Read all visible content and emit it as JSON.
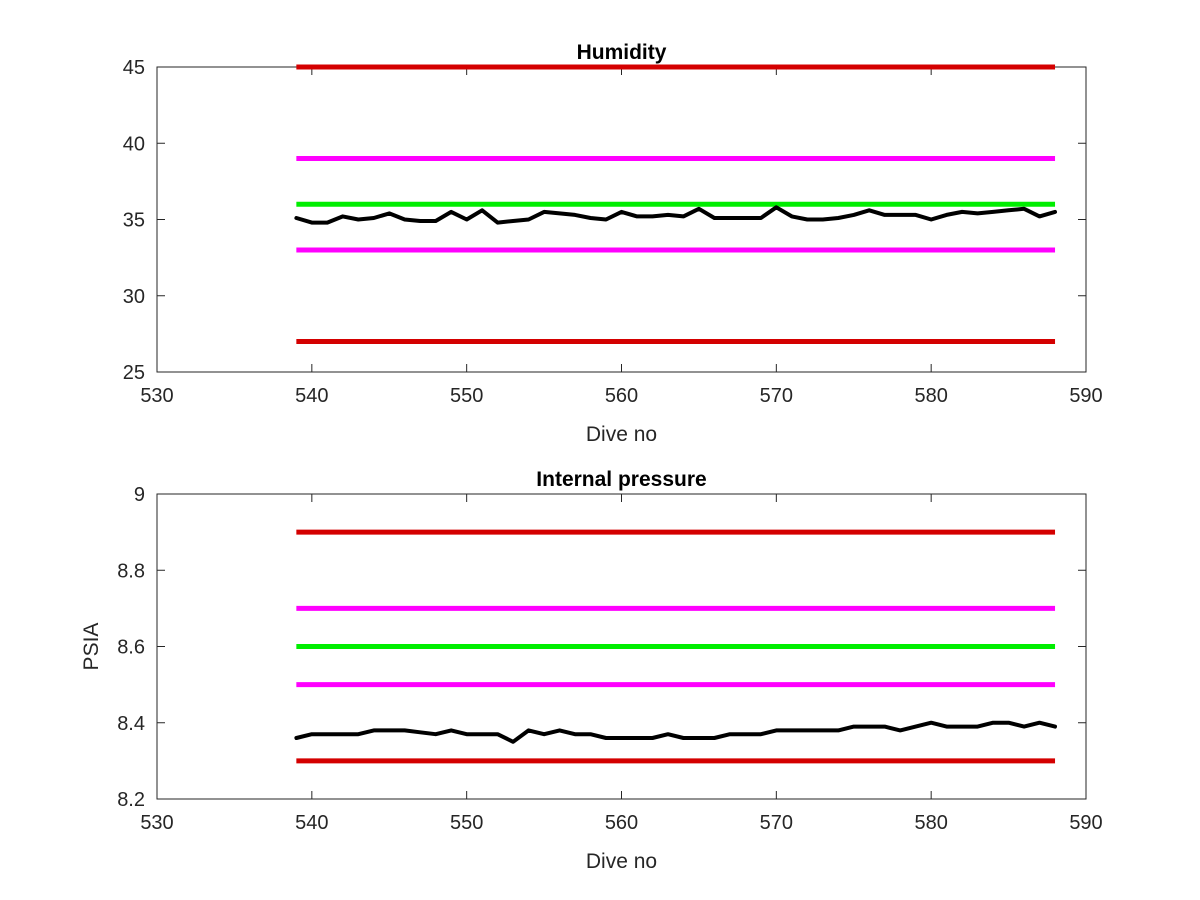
{
  "chart_data": [
    {
      "type": "line",
      "title": "Humidity",
      "xlabel": "Dive no",
      "ylabel": "",
      "xlim": [
        530,
        590
      ],
      "ylim": [
        25,
        45
      ],
      "xticks": [
        "530",
        "540",
        "550",
        "560",
        "570",
        "580",
        "590"
      ],
      "yticks": [
        "25",
        "30",
        "35",
        "40",
        "45"
      ],
      "grid": false,
      "limit_lines": [
        {
          "color": "#d40000",
          "y": 45,
          "x": [
            539,
            588
          ]
        },
        {
          "color": "#ff00ff",
          "y": 39,
          "x": [
            539,
            588
          ]
        },
        {
          "color": "#00ee00",
          "y": 36,
          "x": [
            539,
            588
          ]
        },
        {
          "color": "#ff00ff",
          "y": 33,
          "x": [
            539,
            588
          ]
        },
        {
          "color": "#d40000",
          "y": 27,
          "x": [
            539,
            588
          ]
        }
      ],
      "series": [
        {
          "color": "#000000",
          "x": [
            539,
            540,
            541,
            542,
            543,
            544,
            545,
            546,
            547,
            548,
            549,
            550,
            551,
            552,
            553,
            554,
            555,
            556,
            557,
            558,
            559,
            560,
            561,
            562,
            563,
            564,
            565,
            566,
            567,
            568,
            569,
            570,
            571,
            572,
            573,
            574,
            575,
            576,
            577,
            578,
            579,
            580,
            581,
            582,
            583,
            584,
            585,
            586,
            587,
            588
          ],
          "values": [
            35.1,
            34.8,
            34.8,
            35.2,
            35.0,
            35.1,
            35.4,
            35.0,
            34.9,
            34.9,
            35.5,
            35.0,
            35.6,
            34.8,
            34.9,
            35.0,
            35.5,
            35.4,
            35.3,
            35.1,
            35.0,
            35.5,
            35.2,
            35.2,
            35.3,
            35.2,
            35.7,
            35.1,
            35.1,
            35.1,
            35.1,
            35.8,
            35.2,
            35.0,
            35.0,
            35.1,
            35.3,
            35.6,
            35.3,
            35.3,
            35.3,
            35.0,
            35.3,
            35.5,
            35.4,
            35.5,
            35.6,
            35.7,
            35.2,
            35.5
          ]
        }
      ]
    },
    {
      "type": "line",
      "title": "Internal pressure",
      "xlabel": "Dive no",
      "ylabel": "PSIA",
      "xlim": [
        530,
        590
      ],
      "ylim": [
        8.2,
        9.0
      ],
      "xticks": [
        "530",
        "540",
        "550",
        "560",
        "570",
        "580",
        "590"
      ],
      "yticks": [
        "8.2",
        "8.4",
        "8.6",
        "8.8",
        "9"
      ],
      "grid": false,
      "limit_lines": [
        {
          "color": "#d40000",
          "y": 8.9,
          "x": [
            539,
            588
          ]
        },
        {
          "color": "#ff00ff",
          "y": 8.7,
          "x": [
            539,
            588
          ]
        },
        {
          "color": "#00ee00",
          "y": 8.6,
          "x": [
            539,
            588
          ]
        },
        {
          "color": "#ff00ff",
          "y": 8.5,
          "x": [
            539,
            588
          ]
        },
        {
          "color": "#d40000",
          "y": 8.3,
          "x": [
            539,
            588
          ]
        }
      ],
      "series": [
        {
          "color": "#000000",
          "x": [
            539,
            540,
            541,
            542,
            543,
            544,
            545,
            546,
            547,
            548,
            549,
            550,
            551,
            552,
            553,
            554,
            555,
            556,
            557,
            558,
            559,
            560,
            561,
            562,
            563,
            564,
            565,
            566,
            567,
            568,
            569,
            570,
            571,
            572,
            573,
            574,
            575,
            576,
            577,
            578,
            579,
            580,
            581,
            582,
            583,
            584,
            585,
            586,
            587,
            588
          ],
          "values": [
            8.36,
            8.37,
            8.37,
            8.37,
            8.37,
            8.38,
            8.38,
            8.38,
            8.375,
            8.37,
            8.38,
            8.37,
            8.37,
            8.37,
            8.35,
            8.38,
            8.37,
            8.38,
            8.37,
            8.37,
            8.36,
            8.36,
            8.36,
            8.36,
            8.37,
            8.36,
            8.36,
            8.36,
            8.37,
            8.37,
            8.37,
            8.38,
            8.38,
            8.38,
            8.38,
            8.38,
            8.39,
            8.39,
            8.39,
            8.38,
            8.39,
            8.4,
            8.39,
            8.39,
            8.39,
            8.4,
            8.4,
            8.39,
            8.4,
            8.39
          ]
        }
      ]
    }
  ]
}
